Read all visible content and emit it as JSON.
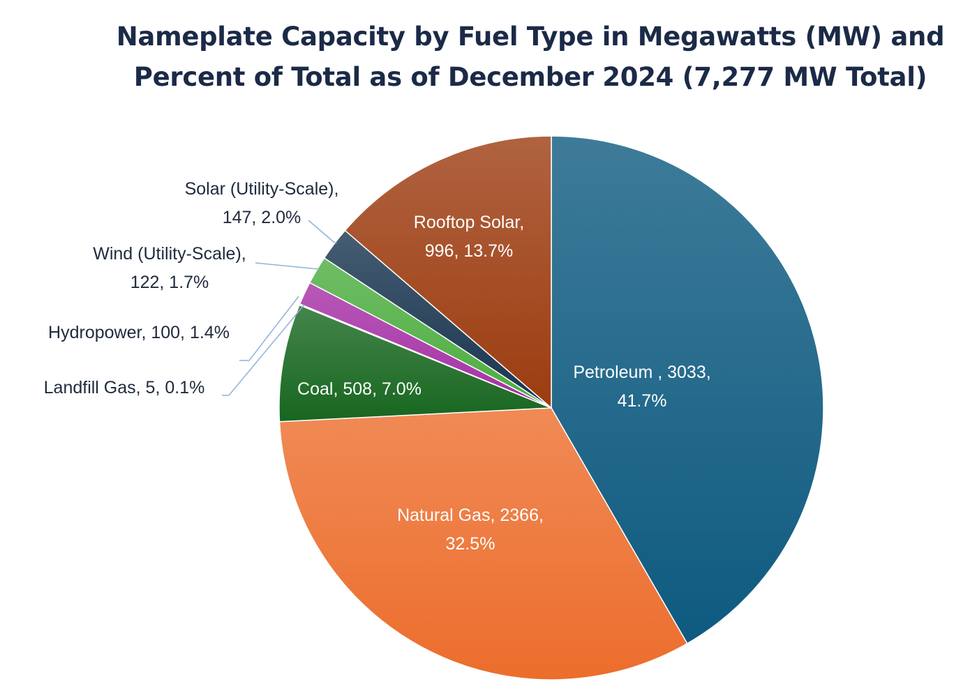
{
  "chart_data": {
    "type": "pie",
    "title": "Nameplate Capacity by Fuel Type in Megawatts (MW) and Percent of Total as of December 2024 (7,277 MW Total)",
    "title_lines": [
      "Nameplate Capacity by Fuel Type in Megawatts (MW) and",
      "Percent of Total as of December 2024 (7,277 MW Total)"
    ],
    "unit": "MW",
    "total": 7277,
    "legend": "none (data labels on slices)",
    "slices": [
      {
        "key": "petroleum",
        "name": "Petroleum",
        "value": 3033,
        "percent": 41.7,
        "color": "#0e5a80",
        "label_lines": [
          "Petroleum , 3033,",
          "41.7%"
        ],
        "label_position": "inside"
      },
      {
        "key": "natural-gas",
        "name": "Natural Gas",
        "value": 2366,
        "percent": 32.5,
        "color": "#ec6d2c",
        "label_lines": [
          "Natural Gas, 2366,",
          "32.5%"
        ],
        "label_position": "inside"
      },
      {
        "key": "coal",
        "name": "Coal",
        "value": 508,
        "percent": 7.0,
        "color": "#17661f",
        "label_lines": [
          "Coal, 508, 7.0%"
        ],
        "label_position": "inside"
      },
      {
        "key": "landfill-gas",
        "name": "Landfill Gas",
        "value": 5,
        "percent": 0.1,
        "color": "#4f8fd0",
        "label_lines": [
          "Landfill Gas, 5, 0.1%"
        ],
        "label_position": "outside"
      },
      {
        "key": "hydropower",
        "name": "Hydropower",
        "value": 100,
        "percent": 1.4,
        "color": "#a52fa5",
        "label_lines": [
          "Hydropower, 100, 1.4%"
        ],
        "label_position": "outside"
      },
      {
        "key": "wind",
        "name": "Wind (Utility-Scale)",
        "value": 122,
        "percent": 1.7,
        "color": "#4cad3e",
        "label_lines": [
          "Wind (Utility-Scale),",
          "122, 1.7%"
        ],
        "label_position": "outside"
      },
      {
        "key": "solar-utility",
        "name": "Solar (Utility-Scale)",
        "value": 147,
        "percent": 2.0,
        "color": "#18344f",
        "label_lines": [
          "Solar (Utility-Scale),",
          "147, 2.0%"
        ],
        "label_position": "outside"
      },
      {
        "key": "rooftop-solar",
        "name": "Rooftop Solar",
        "value": 996,
        "percent": 13.7,
        "color": "#9c3c10",
        "label_lines": [
          "Rooftop Solar,",
          "996, 13.7%"
        ],
        "label_position": "inside"
      }
    ]
  }
}
